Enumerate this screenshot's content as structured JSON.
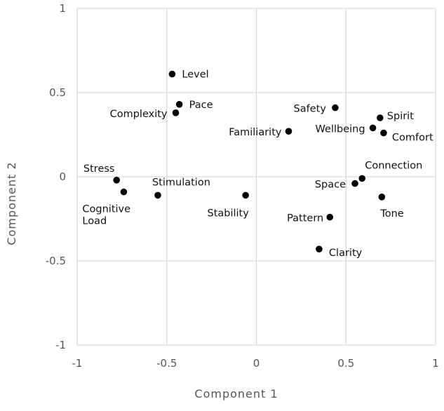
{
  "chart_data": {
    "type": "scatter",
    "title": "",
    "xlabel": "Component 1",
    "ylabel": "Component 2",
    "xlim": [
      -1,
      1
    ],
    "ylim": [
      -1,
      1
    ],
    "x_ticks": [
      "-1",
      "-0.5",
      "0",
      "0.5",
      "1"
    ],
    "y_ticks": [
      "1",
      "0.5",
      "0",
      "-0.5",
      "-1"
    ],
    "grid": true,
    "marker_color": "#000000",
    "points": [
      {
        "label": "Level",
        "x": -0.47,
        "y": 0.61
      },
      {
        "label": "Pace",
        "x": -0.43,
        "y": 0.43
      },
      {
        "label": "Complexity",
        "x": -0.45,
        "y": 0.38
      },
      {
        "label": "Safety",
        "x": 0.44,
        "y": 0.41
      },
      {
        "label": "Spirit",
        "x": 0.69,
        "y": 0.35
      },
      {
        "label": "Wellbeing",
        "x": 0.65,
        "y": 0.29
      },
      {
        "label": "Comfort",
        "x": 0.71,
        "y": 0.26
      },
      {
        "label": "Familiarity",
        "x": 0.18,
        "y": 0.27
      },
      {
        "label": "Stress",
        "x": -0.78,
        "y": -0.02
      },
      {
        "label": "Cognitive Load",
        "x": -0.74,
        "y": -0.09
      },
      {
        "label": "Stimulation",
        "x": -0.55,
        "y": -0.11
      },
      {
        "label": "Stability",
        "x": -0.06,
        "y": -0.11
      },
      {
        "label": "Connection",
        "x": 0.59,
        "y": -0.01
      },
      {
        "label": "Space",
        "x": 0.55,
        "y": -0.04
      },
      {
        "label": "Tone",
        "x": 0.7,
        "y": -0.12
      },
      {
        "label": "Pattern",
        "x": 0.41,
        "y": -0.24
      },
      {
        "label": "Clarity",
        "x": 0.35,
        "y": -0.43
      }
    ]
  }
}
